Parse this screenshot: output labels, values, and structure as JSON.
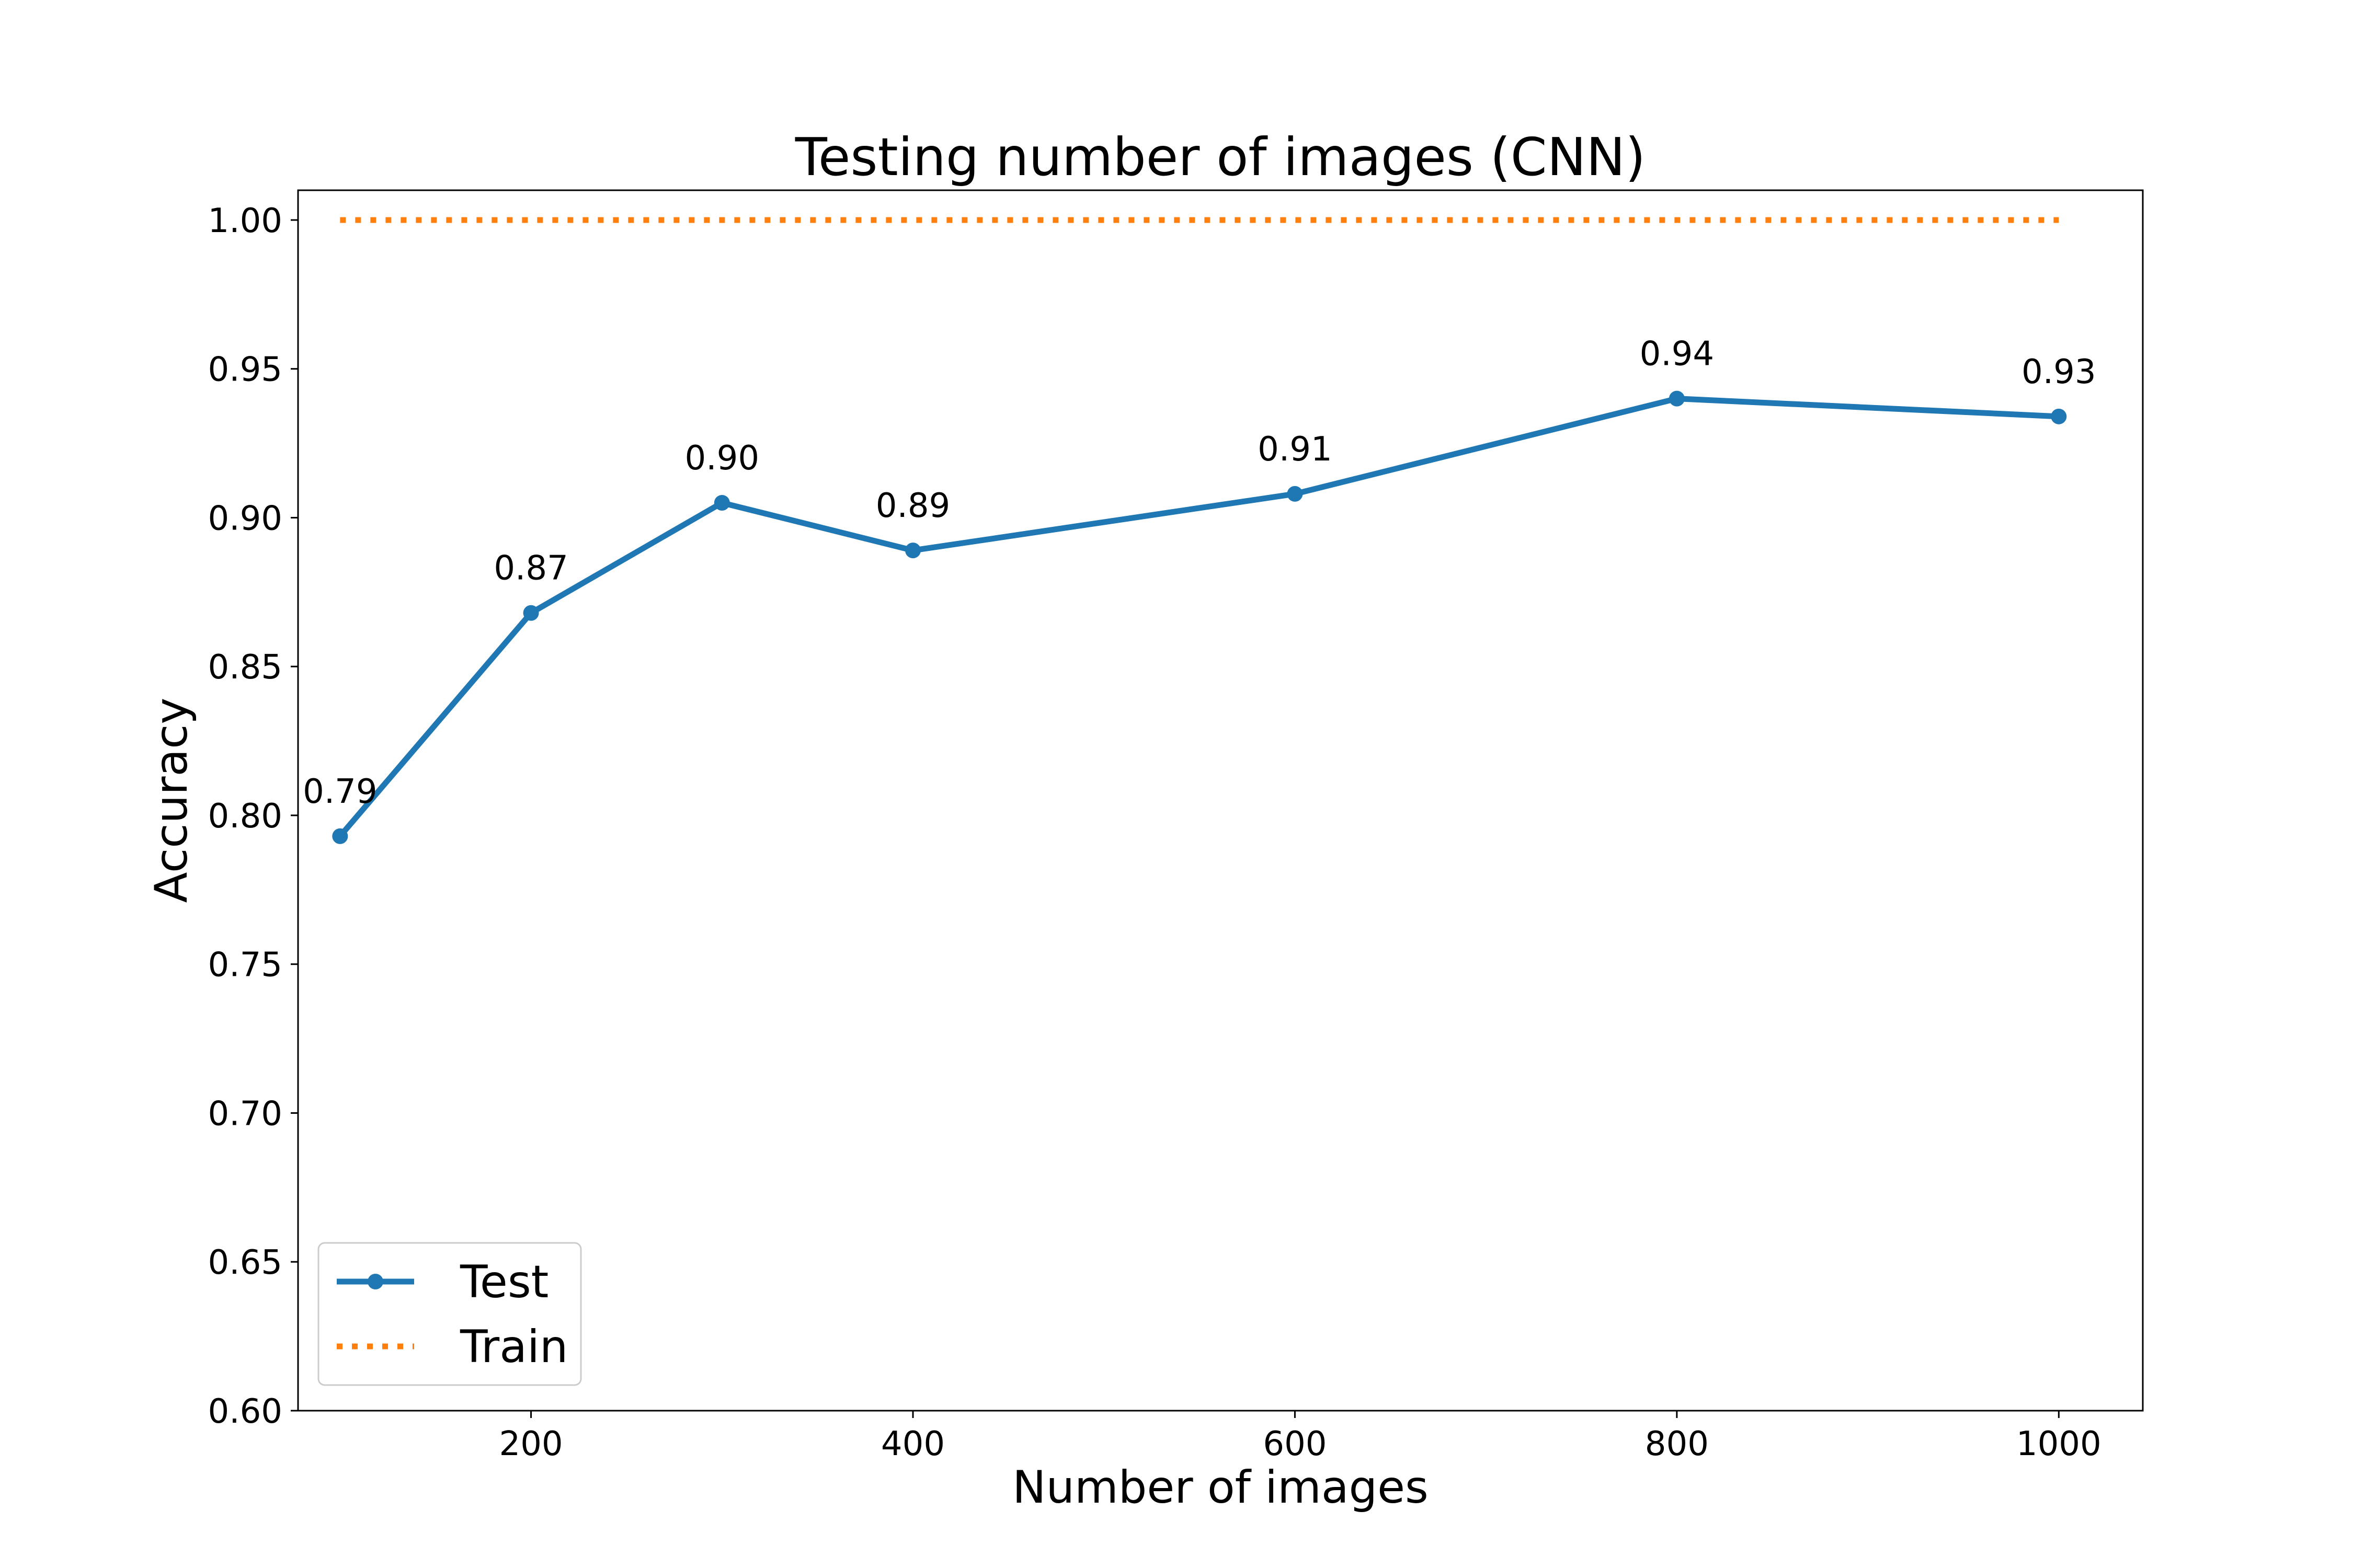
{
  "chart_data": {
    "type": "line",
    "title": "Testing number of images (CNN)",
    "xlabel": "Number of images",
    "ylabel": "Accuracy",
    "xlim": [
      78,
      1044
    ],
    "ylim": [
      0.6,
      1.01
    ],
    "xticks": [
      200,
      400,
      600,
      800,
      1000
    ],
    "yticks": [
      0.6,
      0.65,
      0.7,
      0.75,
      0.8,
      0.85,
      0.9,
      0.95,
      1.0
    ],
    "xtick_labels": [
      "200",
      "400",
      "600",
      "800",
      "1000"
    ],
    "ytick_labels": [
      "0.60",
      "0.65",
      "0.70",
      "0.75",
      "0.80",
      "0.85",
      "0.90",
      "0.95",
      "1.00"
    ],
    "grid": false,
    "legend_position": "lower-left",
    "series": [
      {
        "name": "Test",
        "color": "#1f77b4",
        "style": "solid",
        "marker": "circle",
        "x": [
          100,
          200,
          300,
          400,
          600,
          800,
          1000
        ],
        "values": [
          0.793,
          0.868,
          0.905,
          0.889,
          0.908,
          0.94,
          0.934
        ],
        "labels": [
          "0.79",
          "0.87",
          "0.90",
          "0.89",
          "0.91",
          "0.94",
          "0.93"
        ]
      },
      {
        "name": "Train",
        "color": "#ff7f0e",
        "style": "dotted",
        "marker": "none",
        "x": [
          100,
          200,
          300,
          400,
          600,
          800,
          1000
        ],
        "values": [
          1.0,
          1.0,
          1.0,
          1.0,
          1.0,
          1.0,
          1.0
        ]
      }
    ]
  }
}
